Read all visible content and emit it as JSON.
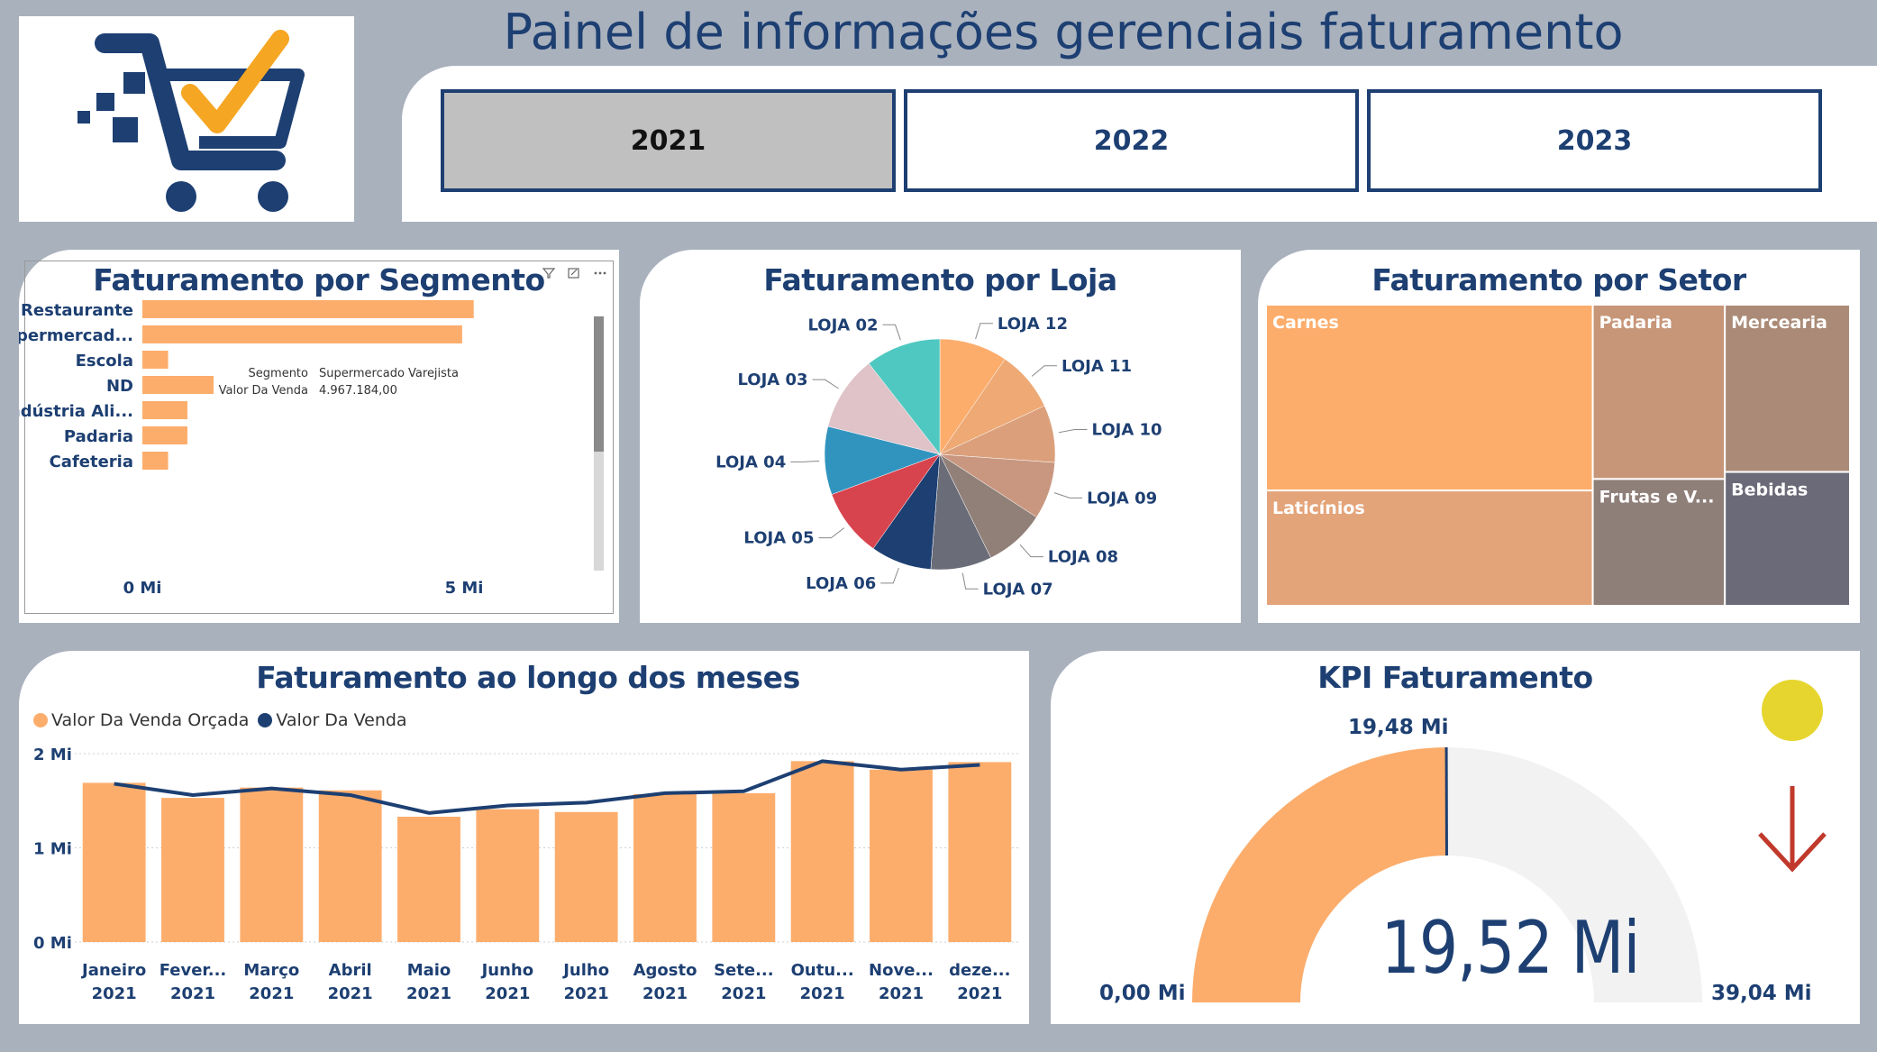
{
  "header": {
    "title": "Painel de informações gerenciais faturamento"
  },
  "logo": {
    "icon": "shopping-cart-check-icon"
  },
  "year_filter": {
    "buttons": [
      {
        "label": "2021",
        "selected": true
      },
      {
        "label": "2022",
        "selected": false
      },
      {
        "label": "2023",
        "selected": false
      }
    ]
  },
  "colors": {
    "accent": "#fcad6c",
    "navy": "#1d3f72",
    "background": "#a9b1bd",
    "kpi_status": "#e6d52e",
    "trend_down": "#c0392b"
  },
  "segment": {
    "title": "Faturamento por Segmento",
    "toolbar_icons": [
      "filter-icon",
      "focus-mode-icon",
      "more-options-icon"
    ],
    "tooltip": {
      "k1": "Segmento",
      "v1": "Supermercado Varejista",
      "k2": "Valor Da Venda",
      "v2": "4.967.184,00"
    }
  },
  "store": {
    "title": "Faturamento por Loja"
  },
  "sector": {
    "title": "Faturamento por Setor"
  },
  "monthly": {
    "title": "Faturamento ao longo dos meses",
    "legend": [
      {
        "label": "Valor Da Venda Orçada",
        "color": "#fcad6c"
      },
      {
        "label": "Valor Da Venda",
        "color": "#1d3f72"
      }
    ]
  },
  "kpi": {
    "title": "KPI Faturamento",
    "value": "19,52 Mi",
    "target_label": "19,48 Mi",
    "min_label": "0,00 Mi",
    "max_label": "39,04 Mi",
    "status_icon": "status-circle-icon",
    "trend_icon": "arrow-down-icon"
  },
  "chart_data": [
    {
      "type": "bar",
      "orientation": "horizontal",
      "title": "Faturamento por Segmento",
      "categories": [
        "Restaurante",
        "Supermercad...",
        "Escola",
        "ND",
        "Indústria Ali...",
        "Padaria",
        "Cafeteria"
      ],
      "values": [
        5.15,
        4.97,
        0.4,
        1.4,
        0.7,
        0.7,
        0.4
      ],
      "unit": "Mi",
      "xlim": [
        0,
        5.3
      ],
      "ticks": [
        {
          "value": 0,
          "label": "0 Mi"
        },
        {
          "value": 5,
          "label": "5 Mi"
        }
      ]
    },
    {
      "type": "pie",
      "title": "Faturamento por Loja",
      "labels": [
        "LOJA 12",
        "LOJA 11",
        "LOJA 10",
        "LOJA 09",
        "LOJA 08",
        "LOJA 07",
        "LOJA 06",
        "LOJA 05",
        "LOJA 04",
        "LOJA 03",
        "LOJA 02"
      ],
      "values": [
        9.5,
        8.5,
        8,
        8,
        8.5,
        8.5,
        8.5,
        9.5,
        9.5,
        10.5,
        10.5
      ],
      "colors": [
        "#fcad6c",
        "#eea975",
        "#dba07b",
        "#c99780",
        "#908078",
        "#6a6c78",
        "#1d3f72",
        "#d8444e",
        "#3194bf",
        "#dfc3c8",
        "#4ec8c0"
      ]
    },
    {
      "type": "treemap",
      "title": "Faturamento por Setor",
      "labels": [
        "Carnes",
        "Laticínios",
        "Padaria",
        "Frutas e V...",
        "Mercearia",
        "Bebidas"
      ],
      "values": [
        5.8,
        3.6,
        2.2,
        1.6,
        2.0,
        1.6
      ],
      "colors": [
        "#fcad6c",
        "#e4a47a",
        "#c79679",
        "#8f7f79",
        "#ab8b77",
        "#6b6a78"
      ]
    },
    {
      "type": "bar",
      "title": "Faturamento ao longo dos meses",
      "categories": [
        "Janeiro 2021",
        "Fever... 2021",
        "Março 2021",
        "Abril 2021",
        "Maio 2021",
        "Junho 2021",
        "Julho 2021",
        "Agosto 2021",
        "Sete... 2021",
        "Outu... 2021",
        "Nove... 2021",
        "deze... 2021"
      ],
      "series": [
        {
          "name": "Valor Da Venda Orçada",
          "type": "bar",
          "values": [
            1.69,
            1.53,
            1.64,
            1.61,
            1.33,
            1.41,
            1.38,
            1.57,
            1.58,
            1.92,
            1.83,
            1.91
          ]
        },
        {
          "name": "Valor Da Venda",
          "type": "line",
          "values": [
            1.68,
            1.56,
            1.63,
            1.56,
            1.37,
            1.45,
            1.48,
            1.58,
            1.6,
            1.92,
            1.83,
            1.88
          ]
        }
      ],
      "ylim": [
        0,
        2
      ],
      "yticks": [
        {
          "value": 0,
          "label": "0 Mi"
        },
        {
          "value": 1,
          "label": "1 Mi"
        },
        {
          "value": 2,
          "label": "2 Mi"
        }
      ],
      "grid": true,
      "legend": "top-left"
    },
    {
      "type": "gauge",
      "title": "KPI Faturamento",
      "value": 19.52,
      "target": 19.48,
      "min": 0,
      "max": 39.04,
      "unit": "Mi"
    }
  ]
}
